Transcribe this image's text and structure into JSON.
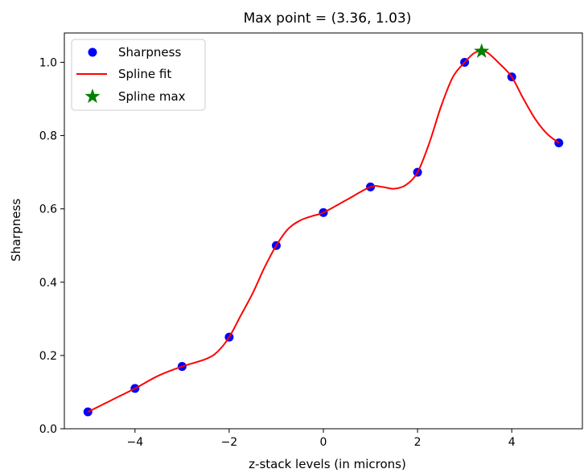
{
  "chart_data": {
    "type": "line",
    "title": "Max point = (3.36, 1.03)",
    "xlabel": "z-stack levels (in microns)",
    "ylabel": "Sharpness",
    "xlim": [
      -5.5,
      5.5
    ],
    "ylim": [
      -0.0,
      1.08
    ],
    "xticks": [
      -4,
      -2,
      0,
      2,
      4
    ],
    "xtick_labels": [
      "−4",
      "−2",
      "0",
      "2",
      "4"
    ],
    "yticks": [
      0.0,
      0.2,
      0.4,
      0.6,
      0.8,
      1.0
    ],
    "ytick_labels": [
      "0.0",
      "0.2",
      "0.4",
      "0.6",
      "0.8",
      "1.0"
    ],
    "legend_position": "upper-left",
    "series": [
      {
        "name": "Sharpness",
        "kind": "scatter",
        "color": "#0000ff",
        "x": [
          -5,
          -4,
          -3,
          -2,
          -1,
          0,
          1,
          2,
          3,
          4,
          5
        ],
        "y": [
          0.046,
          0.11,
          0.17,
          0.25,
          0.5,
          0.59,
          0.66,
          0.7,
          1.0,
          0.96,
          0.78
        ]
      },
      {
        "name": "Spline fit",
        "kind": "line",
        "color": "#ff0000",
        "x": [
          -5,
          -4.5,
          -4,
          -3.5,
          -3,
          -2.5,
          -2.25,
          -2,
          -1.75,
          -1.5,
          -1.25,
          -1,
          -0.75,
          -0.5,
          -0.25,
          0,
          0.5,
          1,
          1.25,
          1.5,
          1.75,
          2,
          2.25,
          2.5,
          2.75,
          3,
          3.2,
          3.36,
          3.5,
          3.75,
          4,
          4.25,
          4.5,
          4.75,
          5
        ],
        "y": [
          0.046,
          0.078,
          0.11,
          0.145,
          0.17,
          0.19,
          0.21,
          0.25,
          0.31,
          0.37,
          0.44,
          0.5,
          0.545,
          0.568,
          0.58,
          0.59,
          0.625,
          0.66,
          0.66,
          0.655,
          0.665,
          0.7,
          0.78,
          0.88,
          0.96,
          1.0,
          1.025,
          1.03,
          1.025,
          0.995,
          0.96,
          0.9,
          0.845,
          0.805,
          0.78
        ]
      },
      {
        "name": "Spline max",
        "kind": "marker",
        "color": "#008000",
        "x": [
          3.36
        ],
        "y": [
          1.03
        ]
      }
    ]
  }
}
